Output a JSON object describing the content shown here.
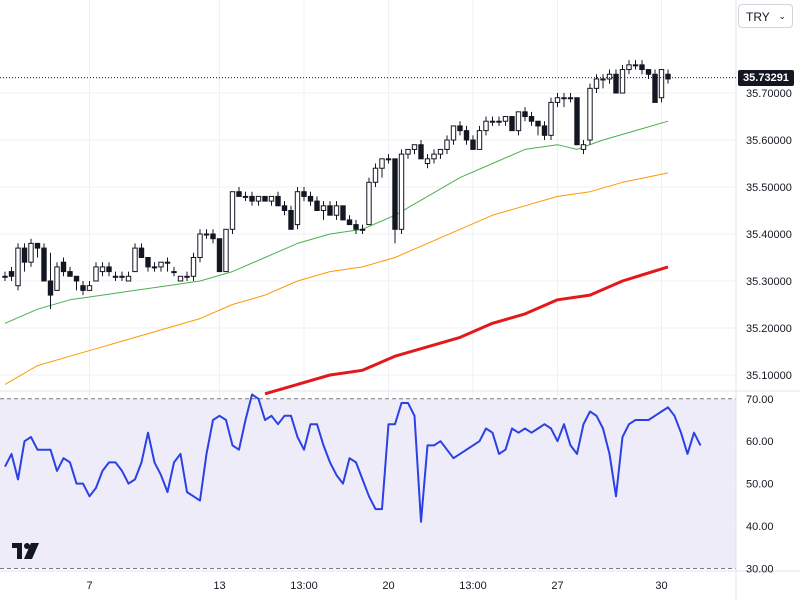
{
  "currency_select": {
    "value": "TRY",
    "chevron": "⌄"
  },
  "last_price": "35.73291",
  "colors": {
    "candle_border": "#131722",
    "candle_up_fill": "#ffffff",
    "candle_down_fill": "#131722",
    "ma_fast": "#4caf50",
    "ma_mid": "#ff9800",
    "ma_slow": "#e31919",
    "rsi_line": "#2b41e6",
    "rsi_band": "#efecf9",
    "grid": "#eef0f3",
    "text": "#131722"
  },
  "chart_data": [
    {
      "type": "candlestick",
      "title": "",
      "y_ticks": [
        "35.70000",
        "35.60000",
        "35.50000",
        "35.40000",
        "35.30000",
        "35.20000",
        "35.10000"
      ],
      "ylim": [
        35.068,
        35.898
      ],
      "x_ticks": [
        {
          "label": "7",
          "index": 13
        },
        {
          "label": "13",
          "index": 33
        },
        {
          "label": "13:00",
          "index": 46
        },
        {
          "label": "20",
          "index": 59
        },
        {
          "label": "13:00",
          "index": 72
        },
        {
          "label": "27",
          "index": 85
        },
        {
          "label": "30",
          "index": 101
        }
      ],
      "last_price_line": 35.73291,
      "candles": [
        [
          35.31,
          35.32,
          35.3,
          35.31
        ],
        [
          35.32,
          35.33,
          35.3,
          35.31
        ],
        [
          35.29,
          35.38,
          35.28,
          35.37
        ],
        [
          35.37,
          35.38,
          35.32,
          35.34
        ],
        [
          35.34,
          35.39,
          35.33,
          35.38
        ],
        [
          35.38,
          35.38,
          35.35,
          35.37
        ],
        [
          35.37,
          35.38,
          35.3,
          35.3
        ],
        [
          35.3,
          35.36,
          35.24,
          35.27
        ],
        [
          35.28,
          35.34,
          35.28,
          35.33
        ],
        [
          35.34,
          35.35,
          35.31,
          35.32
        ],
        [
          35.32,
          35.33,
          35.31,
          35.31
        ],
        [
          35.31,
          35.31,
          35.28,
          35.3
        ],
        [
          35.29,
          35.3,
          35.27,
          35.28
        ],
        [
          35.28,
          35.3,
          35.28,
          35.29
        ],
        [
          35.3,
          35.34,
          35.3,
          35.33
        ],
        [
          35.32,
          35.34,
          35.31,
          35.33
        ],
        [
          35.33,
          35.34,
          35.31,
          35.32
        ],
        [
          35.31,
          35.32,
          35.3,
          35.31
        ],
        [
          35.31,
          35.32,
          35.3,
          35.31
        ],
        [
          35.3,
          35.32,
          35.3,
          35.31
        ],
        [
          35.32,
          35.38,
          35.32,
          35.37
        ],
        [
          35.37,
          35.38,
          35.35,
          35.35
        ],
        [
          35.35,
          35.35,
          35.32,
          35.33
        ],
        [
          35.33,
          35.34,
          35.32,
          35.33
        ],
        [
          35.33,
          35.34,
          35.32,
          35.34
        ],
        [
          35.34,
          35.35,
          35.32,
          35.34
        ],
        [
          35.32,
          35.33,
          35.31,
          35.32
        ],
        [
          35.3,
          35.31,
          35.3,
          35.31
        ],
        [
          35.31,
          35.32,
          35.3,
          35.31
        ],
        [
          35.31,
          35.36,
          35.3,
          35.35
        ],
        [
          35.35,
          35.41,
          35.34,
          35.4
        ],
        [
          35.4,
          35.41,
          35.39,
          35.4
        ],
        [
          35.4,
          35.41,
          35.38,
          35.39
        ],
        [
          35.39,
          35.39,
          35.32,
          35.32
        ],
        [
          35.32,
          35.41,
          35.32,
          35.41
        ],
        [
          35.41,
          35.49,
          35.4,
          35.49
        ],
        [
          35.49,
          35.5,
          35.48,
          35.48
        ],
        [
          35.48,
          35.49,
          35.47,
          35.48
        ],
        [
          35.48,
          35.49,
          35.46,
          35.47
        ],
        [
          35.47,
          35.48,
          35.46,
          35.48
        ],
        [
          35.48,
          35.48,
          35.47,
          35.47
        ],
        [
          35.47,
          35.48,
          35.46,
          35.48
        ],
        [
          35.48,
          35.49,
          35.46,
          35.46
        ],
        [
          35.46,
          35.47,
          35.44,
          35.45
        ],
        [
          35.45,
          35.46,
          35.41,
          35.41
        ],
        [
          35.42,
          35.5,
          35.41,
          35.49
        ],
        [
          35.49,
          35.5,
          35.47,
          35.48
        ],
        [
          35.48,
          35.49,
          35.46,
          35.47
        ],
        [
          35.47,
          35.48,
          35.45,
          35.45
        ],
        [
          35.45,
          35.47,
          35.43,
          35.46
        ],
        [
          35.46,
          35.47,
          35.44,
          35.44
        ],
        [
          35.44,
          35.47,
          35.43,
          35.46
        ],
        [
          35.46,
          35.46,
          35.43,
          35.43
        ],
        [
          35.43,
          35.44,
          35.42,
          35.42
        ],
        [
          35.42,
          35.43,
          35.4,
          35.41
        ],
        [
          35.41,
          35.42,
          35.4,
          35.41
        ],
        [
          35.42,
          35.52,
          35.42,
          35.51
        ],
        [
          35.51,
          35.55,
          35.5,
          35.54
        ],
        [
          35.54,
          35.56,
          35.52,
          35.56
        ],
        [
          35.56,
          35.57,
          35.55,
          35.56
        ],
        [
          35.56,
          35.56,
          35.38,
          35.41
        ],
        [
          35.41,
          35.58,
          35.4,
          35.57
        ],
        [
          35.57,
          35.58,
          35.56,
          35.58
        ],
        [
          35.58,
          35.59,
          35.57,
          35.59
        ],
        [
          35.59,
          35.6,
          35.56,
          35.56
        ],
        [
          35.55,
          35.57,
          35.54,
          35.56
        ],
        [
          35.56,
          35.58,
          35.55,
          35.57
        ],
        [
          35.57,
          35.58,
          35.56,
          35.58
        ],
        [
          35.58,
          35.61,
          35.57,
          35.6
        ],
        [
          35.6,
          35.63,
          35.59,
          35.63
        ],
        [
          35.63,
          35.64,
          35.61,
          35.62
        ],
        [
          35.62,
          35.63,
          35.59,
          35.6
        ],
        [
          35.6,
          35.61,
          35.58,
          35.58
        ],
        [
          35.58,
          35.63,
          35.58,
          35.62
        ],
        [
          35.62,
          35.65,
          35.61,
          35.64
        ],
        [
          35.64,
          35.65,
          35.63,
          35.64
        ],
        [
          35.64,
          35.65,
          35.63,
          35.64
        ],
        [
          35.64,
          35.65,
          35.63,
          35.65
        ],
        [
          35.65,
          35.65,
          35.62,
          35.62
        ],
        [
          35.62,
          35.66,
          35.61,
          35.66
        ],
        [
          35.66,
          35.67,
          35.64,
          35.65
        ],
        [
          35.65,
          35.66,
          35.63,
          35.64
        ],
        [
          35.64,
          35.64,
          35.61,
          35.63
        ],
        [
          35.63,
          35.64,
          35.6,
          35.61
        ],
        [
          35.61,
          35.69,
          35.6,
          35.68
        ],
        [
          35.68,
          35.7,
          35.67,
          35.69
        ],
        [
          35.69,
          35.7,
          35.67,
          35.69
        ],
        [
          35.69,
          35.7,
          35.68,
          35.69
        ],
        [
          35.69,
          35.69,
          35.59,
          35.59
        ],
        [
          35.58,
          35.6,
          35.57,
          35.59
        ],
        [
          35.6,
          35.72,
          35.59,
          35.71
        ],
        [
          35.71,
          35.74,
          35.7,
          35.73
        ],
        [
          35.73,
          35.74,
          35.71,
          35.73
        ],
        [
          35.73,
          35.75,
          35.72,
          35.74
        ],
        [
          35.74,
          35.75,
          35.7,
          35.7
        ],
        [
          35.7,
          35.76,
          35.7,
          35.75
        ],
        [
          35.75,
          35.77,
          35.74,
          35.76
        ],
        [
          35.76,
          35.77,
          35.75,
          35.76
        ],
        [
          35.76,
          35.77,
          35.74,
          35.75
        ],
        [
          35.75,
          35.75,
          35.73,
          35.74
        ],
        [
          35.74,
          35.75,
          35.68,
          35.68
        ],
        [
          35.69,
          35.75,
          35.68,
          35.75
        ],
        [
          35.74,
          35.75,
          35.72,
          35.73
        ]
      ],
      "moving_averages": [
        {
          "color": "#4caf50",
          "width": 1,
          "points": [
            [
              0,
              35.21
            ],
            [
              5,
              35.24
            ],
            [
              10,
              35.26
            ],
            [
              15,
              35.27
            ],
            [
              20,
              35.28
            ],
            [
              25,
              35.29
            ],
            [
              30,
              35.3
            ],
            [
              35,
              35.32
            ],
            [
              40,
              35.35
            ],
            [
              45,
              35.38
            ],
            [
              50,
              35.4
            ],
            [
              55,
              35.41
            ],
            [
              60,
              35.44
            ],
            [
              65,
              35.48
            ],
            [
              70,
              35.52
            ],
            [
              75,
              35.55
            ],
            [
              80,
              35.58
            ],
            [
              85,
              35.59
            ],
            [
              88,
              35.58
            ],
            [
              92,
              35.6
            ],
            [
              97,
              35.62
            ],
            [
              102,
              35.64
            ]
          ]
        },
        {
          "color": "#ff9800",
          "width": 1,
          "points": [
            [
              0,
              35.08
            ],
            [
              5,
              35.12
            ],
            [
              10,
              35.14
            ],
            [
              15,
              35.16
            ],
            [
              20,
              35.18
            ],
            [
              25,
              35.2
            ],
            [
              30,
              35.22
            ],
            [
              35,
              35.25
            ],
            [
              40,
              35.27
            ],
            [
              45,
              35.3
            ],
            [
              50,
              35.32
            ],
            [
              55,
              35.33
            ],
            [
              60,
              35.35
            ],
            [
              65,
              35.38
            ],
            [
              70,
              35.41
            ],
            [
              75,
              35.44
            ],
            [
              80,
              35.46
            ],
            [
              85,
              35.48
            ],
            [
              90,
              35.49
            ],
            [
              95,
              35.51
            ],
            [
              102,
              35.53
            ]
          ]
        },
        {
          "color": "#e31919",
          "width": 3,
          "points": [
            [
              40,
              35.06
            ],
            [
              45,
              35.08
            ],
            [
              50,
              35.1
            ],
            [
              55,
              35.11
            ],
            [
              60,
              35.14
            ],
            [
              65,
              35.16
            ],
            [
              70,
              35.18
            ],
            [
              75,
              35.21
            ],
            [
              80,
              35.23
            ],
            [
              85,
              35.26
            ],
            [
              90,
              35.27
            ],
            [
              95,
              35.3
            ],
            [
              102,
              35.33
            ]
          ]
        }
      ]
    },
    {
      "type": "line",
      "title": "",
      "y_ticks": [
        "70.00",
        "60.00",
        "50.00",
        "40.00",
        "30.00"
      ],
      "ylim": [
        29.4,
        71.6
      ],
      "band": [
        30,
        70
      ],
      "values": [
        54,
        57,
        51,
        60,
        61,
        58,
        58,
        58,
        53,
        56,
        55,
        50,
        50,
        47,
        49,
        53,
        55,
        55,
        53,
        50,
        51,
        55,
        62,
        55,
        52,
        48,
        55,
        57,
        48,
        47,
        46,
        57,
        65,
        66,
        65,
        59,
        58,
        65,
        71,
        70,
        65,
        66,
        64,
        66,
        66,
        61,
        58,
        64,
        64,
        59,
        55,
        52,
        50,
        56,
        55,
        51,
        47,
        44,
        44,
        64,
        64,
        69,
        69,
        66,
        41,
        59,
        59,
        60,
        58,
        56,
        57,
        58,
        59,
        60,
        63,
        62,
        57,
        58,
        63,
        62,
        63,
        62,
        63,
        64,
        63,
        60,
        64,
        59,
        57,
        64,
        67,
        66,
        63,
        57,
        47,
        61,
        64,
        65,
        65,
        65,
        66,
        67,
        68,
        66,
        62,
        57,
        62,
        59
      ]
    }
  ]
}
